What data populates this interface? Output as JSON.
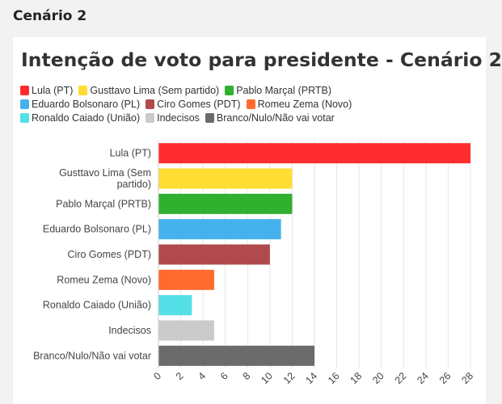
{
  "page": {
    "heading": "Cenário 2"
  },
  "chart_data": {
    "type": "bar",
    "orientation": "horizontal",
    "title": "Intenção de voto para presidente - Cenário 2",
    "categories": [
      "Lula (PT)",
      "Gusttavo Lima (Sem partido)",
      "Pablo Marçal (PRTB)",
      "Eduardo Bolsonaro (PL)",
      "Ciro Gomes (PDT)",
      "Romeu Zema (Novo)",
      "Ronaldo Caiado (União)",
      "Indecisos",
      "Branco/Nulo/Não vai votar"
    ],
    "category_label_lines": [
      [
        "Lula (PT)"
      ],
      [
        "Gusttavo Lima (Sem",
        "partido)"
      ],
      [
        "Pablo Marçal (PRTB)"
      ],
      [
        "Eduardo Bolsonaro (PL)"
      ],
      [
        "Ciro Gomes (PDT)"
      ],
      [
        "Romeu Zema (Novo)"
      ],
      [
        "Ronaldo Caiado (União)"
      ],
      [
        "Indecisos"
      ],
      [
        "Branco/Nulo/Não vai votar"
      ]
    ],
    "values": [
      28,
      12,
      12,
      11,
      10,
      5,
      3,
      5,
      14
    ],
    "colors": [
      "#ff2d30",
      "#ffdd33",
      "#2fb02f",
      "#45b2ee",
      "#b04a4d",
      "#ff6a2e",
      "#55e0e8",
      "#cbcbcb",
      "#6b6b6b"
    ],
    "xlim": [
      0,
      28
    ],
    "xticks": [
      0,
      2,
      4,
      6,
      8,
      10,
      12,
      14,
      16,
      18,
      20,
      22,
      24,
      26,
      28
    ],
    "grid": true,
    "legend": {
      "position": "top-left",
      "rows": [
        [
          0,
          1,
          2
        ],
        [
          3,
          4,
          5
        ],
        [
          6,
          7,
          8
        ]
      ]
    }
  }
}
